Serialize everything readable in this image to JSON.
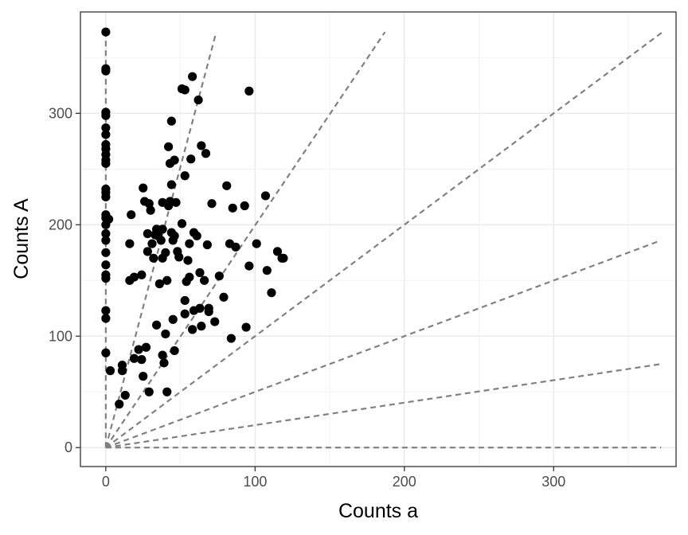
{
  "chart_data": {
    "type": "scatter",
    "title": "",
    "xlabel": "Counts a",
    "ylabel": "Counts A",
    "xlim": [
      -17,
      382
    ],
    "ylim": [
      -17,
      391
    ],
    "x_ticks": [
      0,
      100,
      200,
      300
    ],
    "y_ticks": [
      0,
      100,
      200,
      300
    ],
    "x_tick_labels": [
      "0",
      "100",
      "200",
      "300"
    ],
    "y_tick_labels": [
      "0",
      "100",
      "200",
      "300"
    ],
    "grid": true,
    "legend": "none",
    "colors": {
      "points": "#000000",
      "reference_lines": "#808080",
      "grid_major": "#ebebeb",
      "grid_minor": "#f2f2f2",
      "panel_border": "#333333"
    },
    "reference_lines": [
      {
        "x": [
          0,
          0
        ],
        "y": [
          0,
          373
        ]
      },
      {
        "x": [
          0,
          74
        ],
        "y": [
          0,
          373
        ]
      },
      {
        "x": [
          0,
          187
        ],
        "y": [
          0,
          373
        ]
      },
      {
        "x": [
          0,
          373
        ],
        "y": [
          0,
          373
        ]
      },
      {
        "x": [
          0,
          370
        ],
        "y": [
          0,
          185
        ]
      },
      {
        "x": [
          0,
          372
        ],
        "y": [
          0,
          75
        ]
      },
      {
        "x": [
          0,
          372
        ],
        "y": [
          0,
          0
        ]
      }
    ],
    "points": [
      [
        0,
        373
      ],
      [
        0,
        340
      ],
      [
        0,
        338
      ],
      [
        0,
        301
      ],
      [
        0,
        298
      ],
      [
        0,
        287
      ],
      [
        0,
        281
      ],
      [
        0,
        272
      ],
      [
        0,
        268
      ],
      [
        0,
        263
      ],
      [
        0,
        258
      ],
      [
        0,
        255
      ],
      [
        0,
        232
      ],
      [
        0,
        229
      ],
      [
        0,
        225
      ],
      [
        0,
        209
      ],
      [
        0,
        206
      ],
      [
        0,
        200
      ],
      [
        0,
        192
      ],
      [
        0,
        186
      ],
      [
        0,
        175
      ],
      [
        0,
        164
      ],
      [
        0,
        155
      ],
      [
        0,
        152
      ],
      [
        0,
        123
      ],
      [
        0,
        116
      ],
      [
        0,
        85
      ],
      [
        2,
        205
      ],
      [
        3,
        69
      ],
      [
        9,
        39
      ],
      [
        11,
        69
      ],
      [
        11,
        74
      ],
      [
        13,
        47
      ],
      [
        19,
        80
      ],
      [
        17,
        209
      ],
      [
        16,
        183
      ],
      [
        16,
        150
      ],
      [
        19,
        153
      ],
      [
        22,
        88
      ],
      [
        24,
        155
      ],
      [
        24,
        79
      ],
      [
        25,
        64
      ],
      [
        25,
        233
      ],
      [
        26,
        221
      ],
      [
        27,
        90
      ],
      [
        28,
        192
      ],
      [
        28,
        176
      ],
      [
        29,
        219
      ],
      [
        30,
        213
      ],
      [
        29,
        50
      ],
      [
        31,
        183
      ],
      [
        32,
        170
      ],
      [
        33,
        191
      ],
      [
        34,
        196
      ],
      [
        34,
        110
      ],
      [
        35,
        190
      ],
      [
        36,
        147
      ],
      [
        37,
        186
      ],
      [
        38,
        196
      ],
      [
        38,
        170
      ],
      [
        38,
        220
      ],
      [
        38,
        83
      ],
      [
        39,
        76
      ],
      [
        40,
        175
      ],
      [
        40,
        102
      ],
      [
        41,
        150
      ],
      [
        41,
        50
      ],
      [
        42,
        270
      ],
      [
        42,
        217
      ],
      [
        43,
        255
      ],
      [
        43,
        221
      ],
      [
        44,
        293
      ],
      [
        44,
        236
      ],
      [
        44,
        193
      ],
      [
        45,
        186
      ],
      [
        45,
        115
      ],
      [
        46,
        258
      ],
      [
        46,
        190
      ],
      [
        46,
        87
      ],
      [
        47,
        220
      ],
      [
        48,
        176
      ],
      [
        49,
        171
      ],
      [
        51,
        201
      ],
      [
        51,
        322
      ],
      [
        53,
        321
      ],
      [
        53,
        244
      ],
      [
        53,
        132
      ],
      [
        53,
        120
      ],
      [
        54,
        149
      ],
      [
        55,
        168
      ],
      [
        56,
        153
      ],
      [
        56,
        183
      ],
      [
        57,
        259
      ],
      [
        58,
        333
      ],
      [
        58,
        106
      ],
      [
        59,
        123
      ],
      [
        59,
        193
      ],
      [
        61,
        190
      ],
      [
        62,
        312
      ],
      [
        63,
        157
      ],
      [
        63,
        125
      ],
      [
        64,
        109
      ],
      [
        64,
        271
      ],
      [
        66,
        150
      ],
      [
        67,
        264
      ],
      [
        68,
        182
      ],
      [
        69,
        122
      ],
      [
        69,
        125
      ],
      [
        71,
        219
      ],
      [
        73,
        113
      ],
      [
        76,
        154
      ],
      [
        79,
        135
      ],
      [
        81,
        235
      ],
      [
        83,
        183
      ],
      [
        84,
        98
      ],
      [
        85,
        215
      ],
      [
        87,
        180
      ],
      [
        93,
        217
      ],
      [
        94,
        108
      ],
      [
        96,
        320
      ],
      [
        96,
        163
      ],
      [
        101,
        183
      ],
      [
        107,
        226
      ],
      [
        108,
        159
      ],
      [
        111,
        139
      ],
      [
        115,
        176
      ],
      [
        118,
        170
      ],
      [
        119,
        170
      ]
    ]
  }
}
